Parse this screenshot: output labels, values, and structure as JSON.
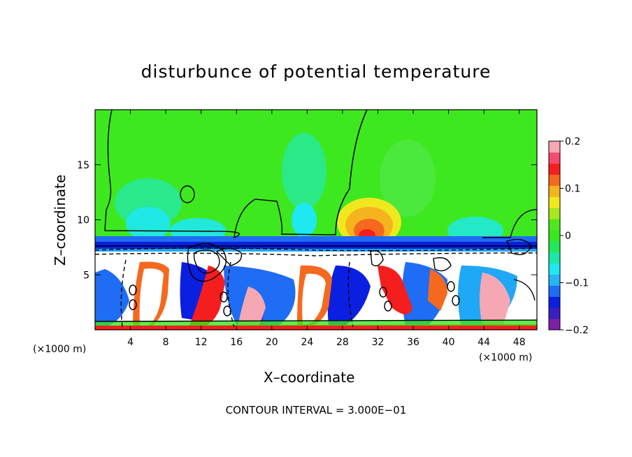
{
  "chart_data": {
    "type": "heatmap",
    "title": "disturbunce of potential temperature",
    "xlabel": "X–coordinate",
    "ylabel": "Z–coordinate",
    "x_unit_label": "(×1000 m)",
    "x_ticks": [
      4,
      8,
      12,
      16,
      20,
      24,
      28,
      32,
      36,
      40,
      44,
      48
    ],
    "y_ticks": [
      5,
      10,
      15
    ],
    "xlim": [
      0,
      50
    ],
    "ylim": [
      0,
      20
    ],
    "colorbar": {
      "ticks": [
        0.2,
        0.1,
        0,
        -0.1,
        -0.2
      ],
      "tick_labels": [
        "0.2",
        "0.1",
        "0",
        "−0.1",
        "−0.2"
      ],
      "range": [
        -0.2,
        0.2
      ],
      "colors": [
        "#7d1fa8",
        "#3a1fbf",
        "#0a1fe0",
        "#1f6cf5",
        "#26b4f5",
        "#1ee8f0",
        "#1ee8a8",
        "#22e85a",
        "#37e81e",
        "#4fe81e",
        "#a8e81e",
        "#f0e81e",
        "#f5b41e",
        "#f5691e",
        "#f51e1e",
        "#f54a6e",
        "#f5a8b4"
      ]
    },
    "annotation": "CONTOUR INTERVAL =  3.000E−01"
  }
}
